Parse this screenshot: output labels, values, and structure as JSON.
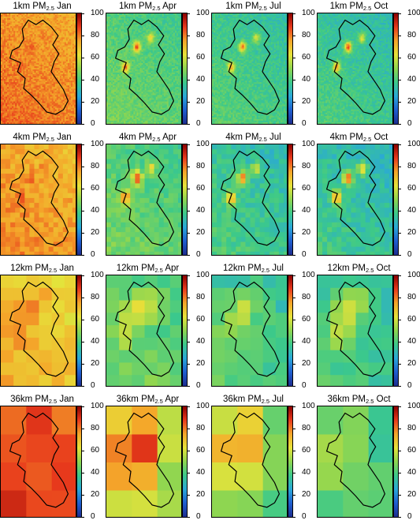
{
  "figure": {
    "colorbar_ticks": [
      "0",
      "20",
      "40",
      "60",
      "80",
      "100"
    ],
    "colorbar_range": [
      0,
      100
    ],
    "colormap": [
      "#1d2d8f",
      "#1f5fd0",
      "#2aa8d8",
      "#3cc98a",
      "#8fd650",
      "#e6e33a",
      "#f4a62a",
      "#e83a1c",
      "#8b0000"
    ],
    "rows": [
      {
        "resolution": "1km",
        "cells": 48,
        "panels": [
          {
            "title_prefix": "1km PM",
            "subscript": "2.5",
            "month": "Jan",
            "base": 78,
            "hot": 85
          },
          {
            "title_prefix": "1km PM",
            "subscript": "2.5",
            "month": "Apr",
            "base": 42,
            "hot": 88
          },
          {
            "title_prefix": "1km PM",
            "subscript": "2.5",
            "month": "Jul",
            "base": 38,
            "hot": 82
          },
          {
            "title_prefix": "1km PM",
            "subscript": "2.5",
            "month": "Oct",
            "base": 36,
            "hot": 88
          }
        ]
      },
      {
        "resolution": "4km",
        "cells": 16,
        "panels": [
          {
            "title_prefix": "4km PM",
            "subscript": "2.5",
            "month": "Jan",
            "base": 75,
            "hot": 85
          },
          {
            "title_prefix": "4km PM",
            "subscript": "2.5",
            "month": "Apr",
            "base": 42,
            "hot": 90
          },
          {
            "title_prefix": "4km PM",
            "subscript": "2.5",
            "month": "Jul",
            "base": 36,
            "hot": 86
          },
          {
            "title_prefix": "4km PM",
            "subscript": "2.5",
            "month": "Oct",
            "base": 34,
            "hot": 88
          }
        ]
      },
      {
        "resolution": "12km",
        "cells": 6,
        "panels": [
          {
            "title_prefix": "12km PM",
            "subscript": "2.5",
            "month": "Jan",
            "base": 68,
            "hot": 76
          },
          {
            "title_prefix": "12km PM",
            "subscript": "2.5",
            "month": "Apr",
            "base": 43,
            "hot": 60
          },
          {
            "title_prefix": "12km PM",
            "subscript": "2.5",
            "month": "Jul",
            "base": 38,
            "hot": 55
          },
          {
            "title_prefix": "12km PM",
            "subscript": "2.5",
            "month": "Oct",
            "base": 36,
            "hot": 58
          }
        ]
      },
      {
        "resolution": "36km",
        "cells": 3,
        "panels": [
          {
            "title_prefix": "36km PM",
            "subscript": "2.5",
            "month": "Jan",
            "base": 86,
            "hot": 88
          },
          {
            "title_prefix": "36km PM",
            "subscript": "2.5",
            "month": "Apr",
            "base": 50,
            "hot": 74
          },
          {
            "title_prefix": "36km PM",
            "subscript": "2.5",
            "month": "Jul",
            "base": 42,
            "hot": 62
          },
          {
            "title_prefix": "36km PM",
            "subscript": "2.5",
            "month": "Oct",
            "base": 38,
            "hot": 46
          }
        ]
      }
    ]
  }
}
